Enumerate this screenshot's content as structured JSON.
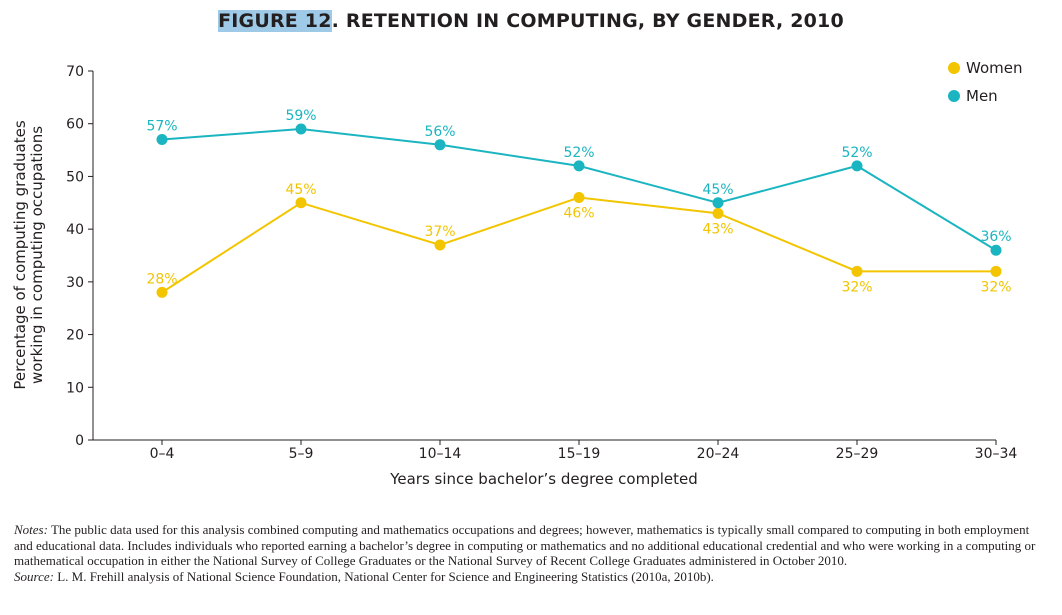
{
  "title_highlight": "FIGURE 12",
  "title_rest": ". RETENTION IN COMPUTING, BY GENDER, 2010",
  "notes_label": "Notes:",
  "notes_text": "The public data used for this analysis combined computing and mathematics occupations and degrees; however, mathematics is typically small compared to computing in both employment and educational data. Includes individuals who reported earning a bachelor’s degree in computing or mathematics and no additional educational credential and who were working in a computing or mathematical occupation in either the National Survey of College Graduates or the National Survey of Recent College Graduates administered in October 2010.",
  "source_label": "Source:",
  "source_text": "L. M. Frehill analysis of National Science Foundation, National Center for Science and Engineering Statistics (2010a, 2010b).",
  "chart_data": {
    "type": "line",
    "xlabel": "Years since bachelor’s degree completed",
    "ylabel_line1": "Percentage of computing graduates",
    "ylabel_line2": "working in computing occupations",
    "categories": [
      "0–4",
      "5–9",
      "10–14",
      "15–19",
      "20–24",
      "25–29",
      "30–34"
    ],
    "ylim": [
      0,
      70
    ],
    "yticks": [
      0,
      10,
      20,
      30,
      40,
      50,
      60,
      70
    ],
    "grid": false,
    "legend_position": "top-right",
    "series": [
      {
        "name": "Women",
        "color": "#f2c500",
        "values": [
          28,
          45,
          37,
          46,
          43,
          32,
          32
        ],
        "labels": [
          "28%",
          "45%",
          "37%",
          "46%",
          "43%",
          "32%",
          "32%"
        ],
        "label_side": [
          "above",
          "above",
          "above",
          "below",
          "below",
          "below",
          "below"
        ]
      },
      {
        "name": "Men",
        "color": "#1bb5c1",
        "values": [
          57,
          59,
          56,
          52,
          45,
          52,
          36
        ],
        "labels": [
          "57%",
          "59%",
          "56%",
          "52%",
          "45%",
          "52%",
          "36%"
        ],
        "label_side": [
          "above",
          "above",
          "above",
          "above",
          "above",
          "above",
          "above"
        ]
      }
    ]
  }
}
